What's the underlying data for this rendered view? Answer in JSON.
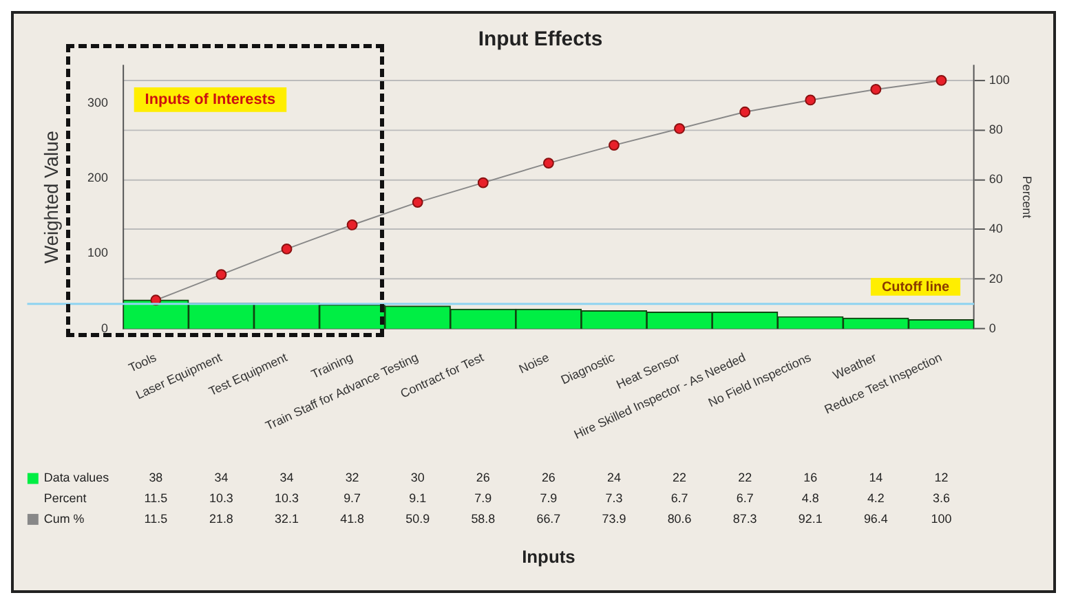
{
  "chart_data": {
    "type": "bar",
    "title": "Input Effects",
    "ylabel": "Weighted Value",
    "y2label": "Percent",
    "categories": [
      "Tools",
      "Laser Equipment",
      "Test Equipment",
      "Training",
      "Train Staff for Advance Testing",
      "Contract for Test",
      "Noise",
      "Diagnostic",
      "Heat Sensor",
      "Hire Skilled Inspector - As Needed",
      "No Field Inspections",
      "Weather",
      "Reduce Test Inspection"
    ],
    "series": [
      {
        "name": "Data values",
        "color": "#00ee44",
        "values": [
          38,
          34,
          34,
          32,
          30,
          26,
          26,
          24,
          22,
          22,
          16,
          14,
          12
        ]
      },
      {
        "name": "Cum %",
        "type": "line",
        "axis": "y2",
        "color": "#888888",
        "values": [
          11.5,
          21.8,
          32.1,
          41.8,
          50.9,
          58.8,
          66.7,
          73.9,
          80.6,
          87.3,
          92.1,
          96.4,
          100
        ]
      }
    ],
    "annotations": [
      "Inputs of Interests",
      "Inputs",
      "Percent",
      "11.5",
      "10.3",
      "10.3",
      "9.7",
      "9.1",
      "7.9",
      "7.9",
      "7.3",
      "6.7",
      "6.7",
      "4.8",
      "4.2",
      "3.6"
    ],
    "ref_lines": [
      {
        "axis": "y2",
        "value": 10,
        "label": "Cutoff line",
        "color": "#8fd3f0"
      }
    ],
    "data_labels": true,
    "marker": "circle",
    "grid": true,
    "legend": "bottom left",
    "ylim": [
      0,
      350
    ],
    "yticks": [
      0,
      100,
      200,
      300
    ],
    "y2lim": [
      0,
      106
    ],
    "y2ticks": [
      0,
      20,
      40,
      60,
      80,
      100
    ]
  }
}
